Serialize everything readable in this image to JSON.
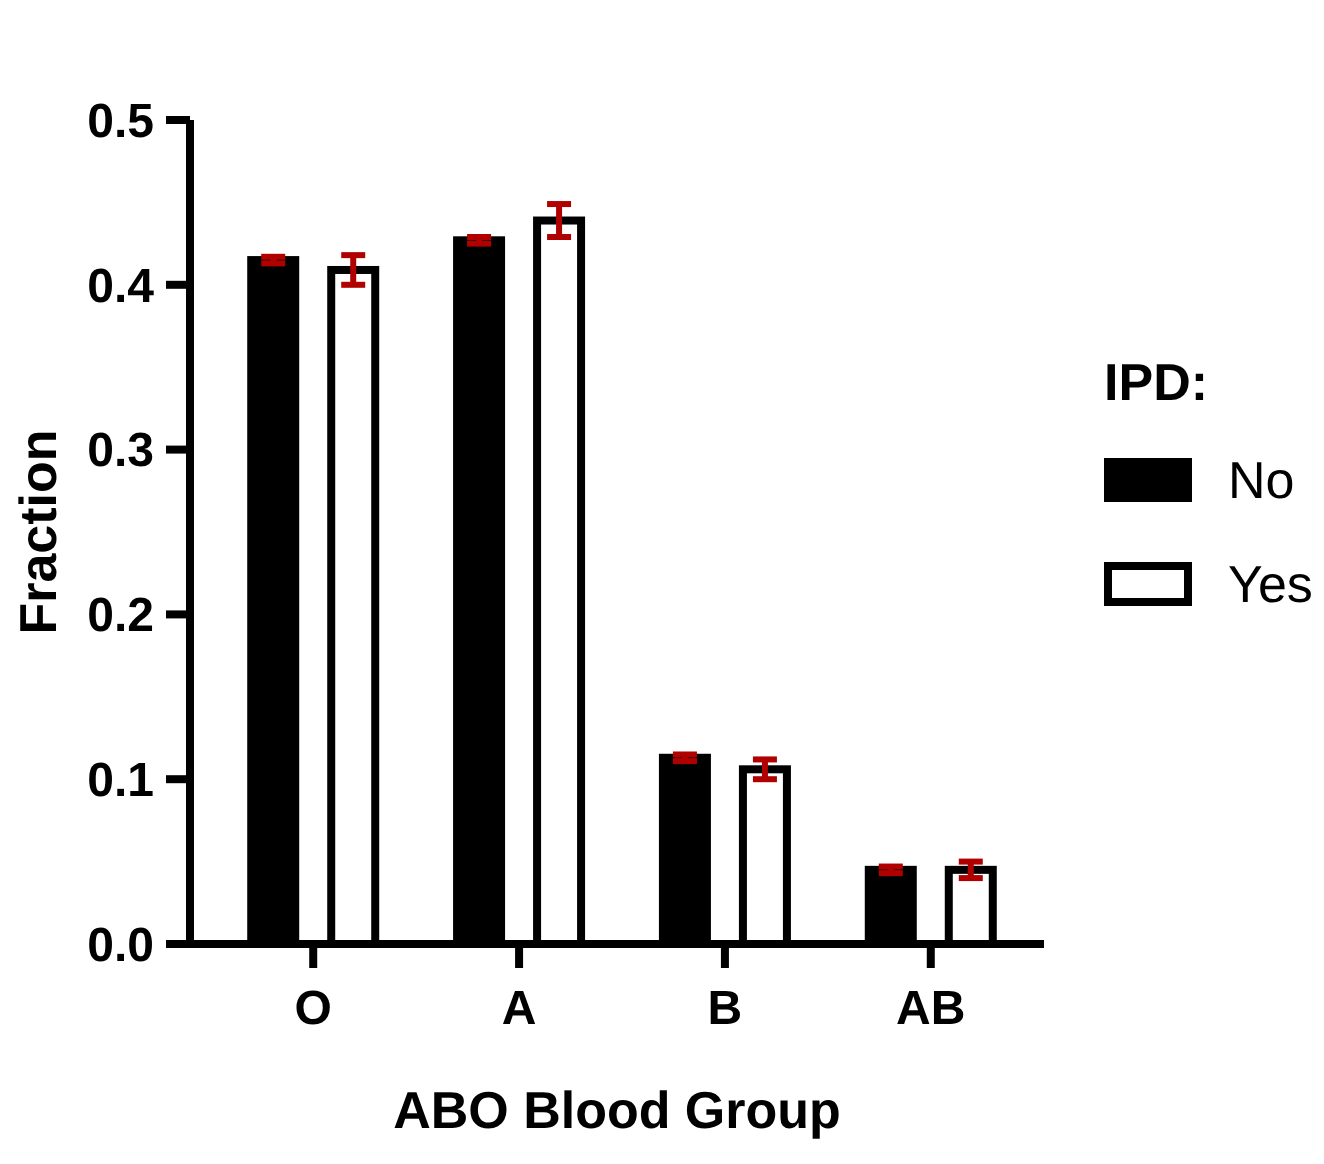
{
  "chart_data": {
    "type": "bar",
    "xlabel": "ABO Blood Group",
    "ylabel": "Fraction",
    "legend_title": "IPD:",
    "categories": [
      "O",
      "A",
      "B",
      "AB"
    ],
    "series": [
      {
        "name": "No",
        "color": "#000000",
        "values": [
          0.415,
          0.427,
          0.113,
          0.045
        ],
        "errors": [
          0.002,
          0.002,
          0.002,
          0.002
        ]
      },
      {
        "name": "Yes",
        "color": "#ffffff",
        "values": [
          0.409,
          0.439,
          0.106,
          0.045
        ],
        "errors": [
          0.009,
          0.01,
          0.006,
          0.005
        ]
      }
    ],
    "ylim": [
      0,
      0.5
    ],
    "yticks": [
      {
        "value": 0,
        "label": "0.0"
      },
      0.1,
      0.2,
      0.3,
      0.4,
      0.5
    ],
    "grid": false,
    "legend": "right"
  }
}
